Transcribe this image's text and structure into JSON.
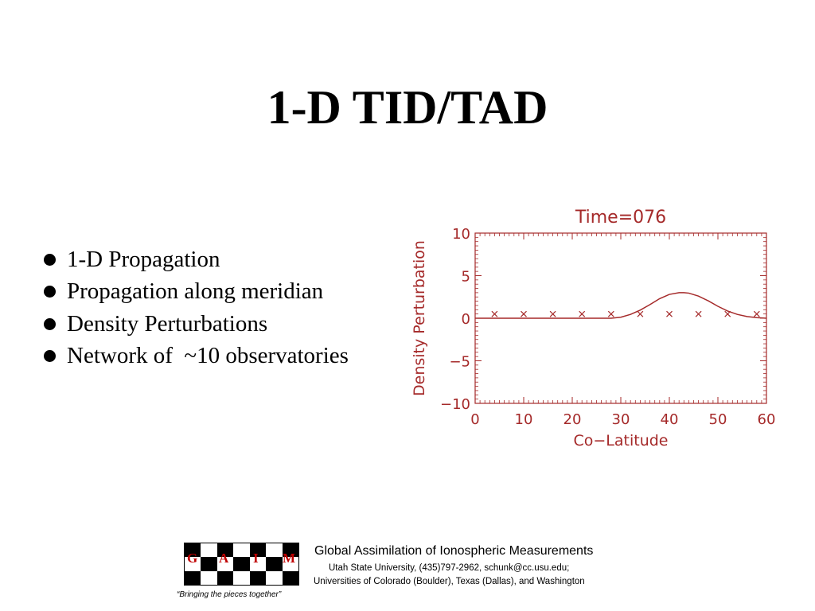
{
  "slide": {
    "title": "1-D TID/TAD",
    "bullets": [
      "1-D Propagation",
      "Propagation along meridian",
      "Density Perturbations",
      "Network of  ~10 observatories"
    ]
  },
  "chart_data": {
    "type": "line",
    "title": "Time=076",
    "xlabel": "Co−Latitude",
    "ylabel": "Density  Perturbation",
    "xlim": [
      0,
      60
    ],
    "ylim": [
      -10,
      10
    ],
    "x_ticks": [
      0,
      10,
      20,
      30,
      40,
      50,
      60
    ],
    "y_ticks": [
      10,
      5,
      0,
      -5,
      -10
    ],
    "y_tick_labels": [
      "10",
      "5",
      "0",
      "−5",
      "−10"
    ],
    "grid": false,
    "color": "#a52a2a",
    "series": [
      {
        "type": "line",
        "x": [
          0,
          28,
          30,
          32,
          34,
          36,
          38,
          40,
          42,
          43,
          44,
          46,
          48,
          50,
          52,
          54,
          56,
          58,
          60
        ],
        "y": [
          0,
          0,
          0.12,
          0.45,
          0.95,
          1.6,
          2.3,
          2.8,
          3.0,
          3.0,
          2.95,
          2.6,
          2.05,
          1.4,
          0.85,
          0.45,
          0.2,
          0.07,
          0
        ]
      },
      {
        "type": "scatter",
        "marker": "x",
        "x": [
          4,
          10,
          16,
          22,
          28,
          34,
          40,
          46,
          52,
          58
        ],
        "y": [
          0.5,
          0.5,
          0.5,
          0.5,
          0.5,
          0.5,
          0.5,
          0.5,
          0.5,
          0.5
        ]
      }
    ]
  },
  "footer": {
    "org_name": "Global Assimilation of Ionospheric Measurements",
    "line1": "Utah State University, (435)797-2962, schunk@cc.usu.edu;",
    "line2": "Universities of Colorado (Boulder), Texas (Dallas), and Washington",
    "tagline": "“Bringing the pieces together”",
    "logo_letters": [
      "G",
      "A",
      "I",
      "M"
    ]
  }
}
